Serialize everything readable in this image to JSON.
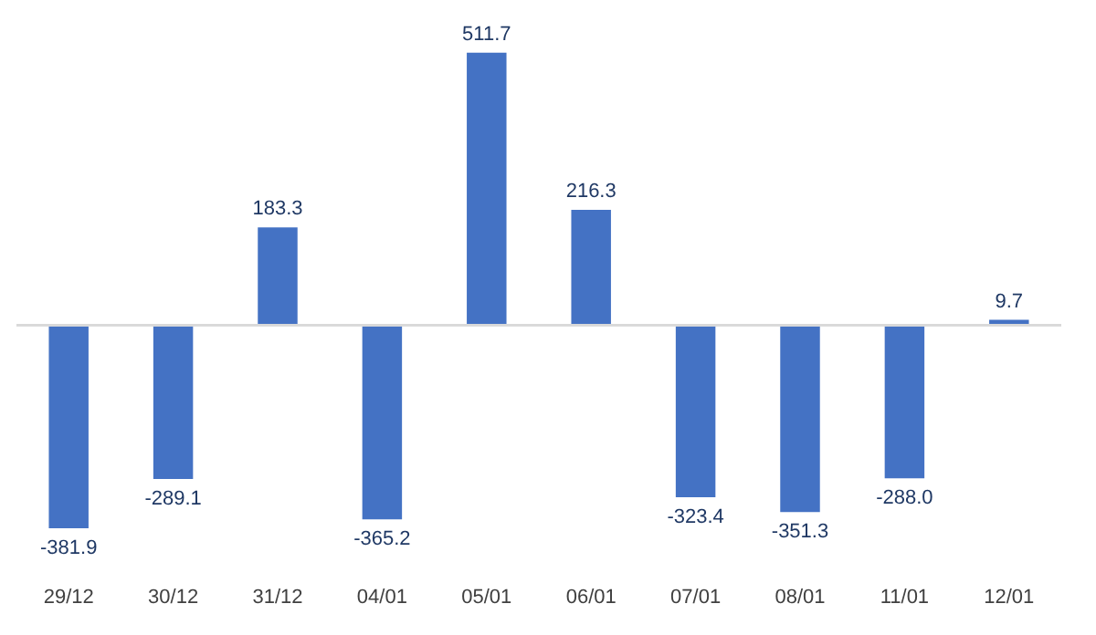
{
  "chart_data": {
    "type": "bar",
    "categories": [
      "29/12",
      "30/12",
      "31/12",
      "04/01",
      "05/01",
      "06/01",
      "07/01",
      "08/01",
      "11/01",
      "12/01"
    ],
    "values": [
      -381.9,
      -289.1,
      183.3,
      -365.2,
      511.7,
      216.3,
      -323.4,
      -351.3,
      -288.0,
      9.7
    ],
    "color": "#4472c4",
    "value_labels": [
      "-381.9",
      "-289.1",
      "183.3",
      "-365.2",
      "511.7",
      "216.3",
      "-323.4",
      "-351.3",
      "-288.0",
      "9.7"
    ]
  }
}
